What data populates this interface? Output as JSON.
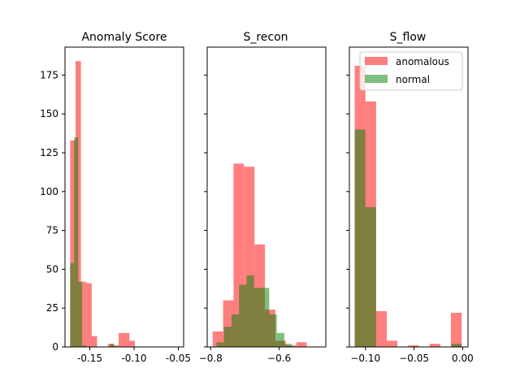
{
  "chart_data": [
    {
      "type": "bar",
      "title": "Anomaly Score",
      "xlabel": "",
      "ylabel": "",
      "xlim": [
        -0.178,
        -0.044
      ],
      "ylim": [
        0,
        193
      ],
      "xticks": [
        "-0.15",
        "-0.10",
        "-0.05"
      ],
      "xtick_values": [
        -0.15,
        -0.1,
        -0.05
      ],
      "yticks": [
        "0",
        "25",
        "50",
        "75",
        "100",
        "125",
        "150",
        "175"
      ],
      "ytick_values": [
        0,
        25,
        50,
        75,
        100,
        125,
        150,
        175
      ],
      "series": [
        {
          "name": "anomalous",
          "color": "#ff0000",
          "bins": [
            [
              -0.1722,
              -0.1661,
              133
            ],
            [
              -0.1661,
              -0.16,
              184
            ],
            [
              -0.16,
              -0.1539,
              42
            ],
            [
              -0.1539,
              -0.1478,
              41
            ],
            [
              -0.1478,
              -0.1418,
              7
            ],
            [
              -0.1418,
              -0.1357,
              0
            ],
            [
              -0.1357,
              -0.1296,
              0
            ],
            [
              -0.1296,
              -0.1235,
              2
            ],
            [
              -0.1235,
              -0.1174,
              1
            ],
            [
              -0.1174,
              -0.1113,
              9
            ],
            [
              -0.1113,
              -0.1052,
              9
            ],
            [
              -0.1052,
              -0.0991,
              4
            ]
          ]
        },
        {
          "name": "normal",
          "color": "#008000",
          "bins": [
            [
              -0.1722,
              -0.1677,
              54
            ],
            [
              -0.1677,
              -0.1631,
              135
            ],
            [
              -0.1631,
              -0.1586,
              42
            ],
            [
              -0.1586,
              -0.1541,
              1
            ],
            [
              -0.1541,
              -0.1496,
              0
            ],
            [
              -0.1496,
              -0.145,
              0
            ],
            [
              -0.145,
              -0.1405,
              0
            ],
            [
              -0.1405,
              -0.136,
              0
            ],
            [
              -0.136,
              -0.1314,
              0
            ],
            [
              -0.1314,
              -0.1269,
              0
            ],
            [
              -0.1269,
              -0.1224,
              2
            ],
            [
              -0.1224,
              -0.1179,
              0
            ]
          ]
        }
      ]
    },
    {
      "type": "bar",
      "title": "S_recon",
      "xlabel": "",
      "ylabel": "",
      "xlim": [
        -0.81,
        -0.464
      ],
      "ylim": [
        0,
        193
      ],
      "xticks": [
        "−0.8",
        "−0.6"
      ],
      "xtick_values": [
        -0.8,
        -0.6
      ],
      "yticks": [],
      "ytick_values": [],
      "series": [
        {
          "name": "anomalous",
          "color": "#ff0000",
          "bins": [
            [
              -0.7941,
              -0.7636,
              10
            ],
            [
              -0.7636,
              -0.7331,
              30
            ],
            [
              -0.7331,
              -0.7026,
              118
            ],
            [
              -0.7026,
              -0.6721,
              116
            ],
            [
              -0.6721,
              -0.6416,
              66
            ],
            [
              -0.6416,
              -0.6111,
              24
            ],
            [
              -0.6111,
              -0.5806,
              4
            ],
            [
              -0.5806,
              -0.5501,
              1
            ],
            [
              -0.5501,
              -0.5196,
              3
            ]
          ]
        },
        {
          "name": "normal",
          "color": "#008000",
          "bins": [
            [
              -0.783,
              -0.761,
              3
            ],
            [
              -0.761,
              -0.739,
              13
            ],
            [
              -0.739,
              -0.717,
              21
            ],
            [
              -0.717,
              -0.695,
              40
            ],
            [
              -0.695,
              -0.673,
              46
            ],
            [
              -0.673,
              -0.651,
              38
            ],
            [
              -0.651,
              -0.629,
              38
            ],
            [
              -0.629,
              -0.607,
              21
            ],
            [
              -0.607,
              -0.585,
              9
            ],
            [
              -0.585,
              -0.563,
              2
            ]
          ]
        }
      ]
    },
    {
      "type": "bar",
      "title": "S_flow",
      "xlabel": "",
      "ylabel": "",
      "xlim": [
        -0.1165,
        0.0055
      ],
      "ylim": [
        0,
        193
      ],
      "xticks": [
        "−0.10",
        "−0.05",
        "0.00"
      ],
      "xtick_values": [
        -0.1,
        -0.05,
        0.0
      ],
      "yticks": [],
      "ytick_values": [],
      "legend": {
        "location": "upper right",
        "entries": [
          "anomalous",
          "normal"
        ]
      },
      "series": [
        {
          "name": "anomalous",
          "color": "#ff0000",
          "bins": [
            [
              -0.111,
              -0.1,
              181
            ],
            [
              -0.1,
              -0.089,
              158
            ],
            [
              -0.089,
              -0.078,
              23
            ],
            [
              -0.078,
              -0.067,
              4
            ],
            [
              -0.067,
              -0.056,
              0
            ],
            [
              -0.056,
              -0.045,
              1
            ],
            [
              -0.045,
              -0.034,
              0
            ],
            [
              -0.034,
              -0.023,
              2
            ],
            [
              -0.023,
              -0.012,
              0
            ],
            [
              -0.012,
              -0.001,
              22
            ]
          ]
        },
        {
          "name": "normal",
          "color": "#008000",
          "bins": [
            [
              -0.111,
              -0.1,
              140
            ],
            [
              -0.1,
              -0.089,
              90
            ],
            [
              -0.089,
              -0.078,
              0
            ],
            [
              -0.078,
              -0.067,
              0
            ],
            [
              -0.067,
              -0.056,
              0
            ],
            [
              -0.056,
              -0.045,
              0
            ],
            [
              -0.045,
              -0.034,
              0
            ],
            [
              -0.034,
              -0.023,
              0
            ],
            [
              -0.023,
              -0.012,
              0
            ],
            [
              -0.012,
              -0.001,
              2
            ]
          ]
        }
      ]
    }
  ]
}
